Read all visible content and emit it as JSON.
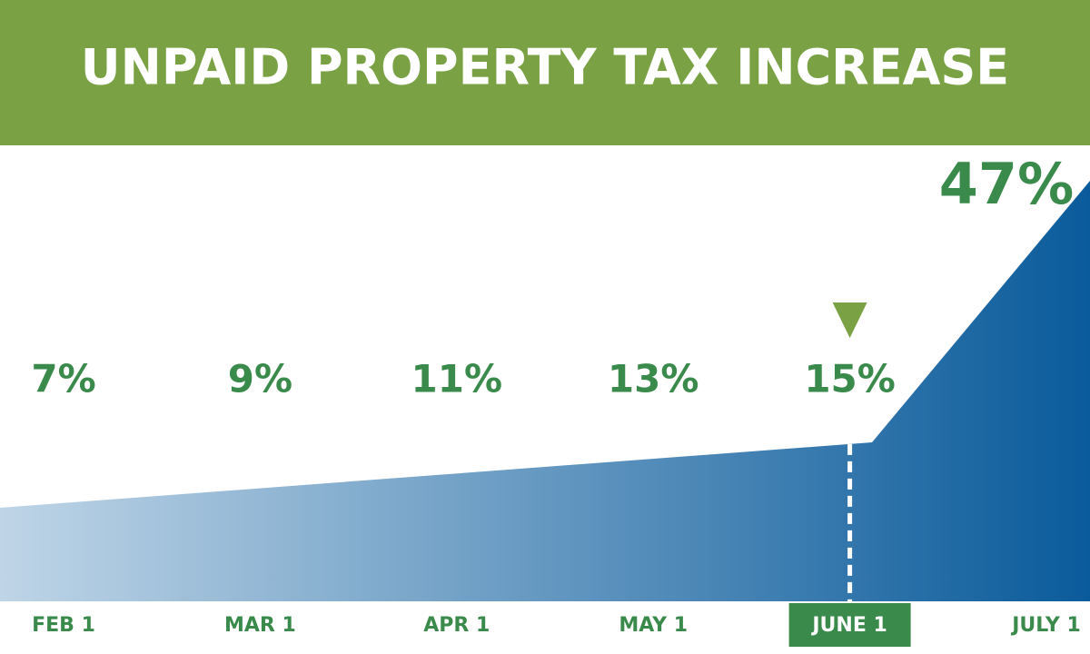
{
  "chart_data": {
    "type": "area",
    "title": "UNPAID PROPERTY TAX INCREASE",
    "categories": [
      "FEB 1",
      "MAR 1",
      "APR 1",
      "MAY 1",
      "JUNE 1",
      "JULY 1"
    ],
    "values": [
      7,
      9,
      11,
      13,
      15,
      47
    ],
    "value_labels": [
      "7%",
      "9%",
      "11%",
      "13%",
      "15%",
      "47%"
    ],
    "colors": [
      "#bfd5e7",
      "#0a5b9b"
    ],
    "highlight": 4
  }
}
